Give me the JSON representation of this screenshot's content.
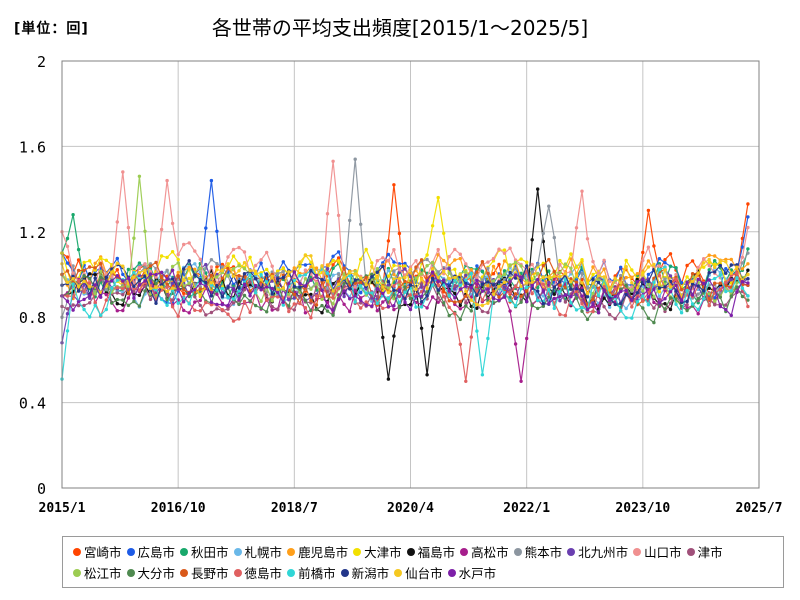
{
  "chart_data": {
    "type": "line",
    "title": "各世帯の平均支出頻度[2015/1～2025/5]",
    "unit_label": "[単位：回]",
    "ylim": [
      0,
      2
    ],
    "y_ticks": [
      "0",
      "0.4",
      "0.8",
      "1.2",
      "1.6",
      "2"
    ],
    "x_start_index": 0,
    "x_end_index": 126,
    "x_ticks": [
      {
        "label": "2015/1",
        "index": 0
      },
      {
        "label": "2016/10",
        "index": 21
      },
      {
        "label": "2018/7",
        "index": 42
      },
      {
        "label": "2020/4",
        "index": 63
      },
      {
        "label": "2022/1",
        "index": 84
      },
      {
        "label": "2023/10",
        "index": 105
      },
      {
        "label": "2025/7",
        "index": 126
      }
    ],
    "n_points": 125,
    "series": [
      {
        "name": "宮崎市",
        "color": "#ff4500",
        "base": 0.98,
        "amp": 0.12,
        "anchors": [
          [
            0,
            1.1
          ],
          [
            41,
            1.0
          ],
          [
            60,
            1.42
          ],
          [
            106,
            1.3
          ],
          [
            124,
            1.33
          ]
        ]
      },
      {
        "name": "広島市",
        "color": "#1e5be6",
        "base": 1.0,
        "amp": 0.12,
        "anchors": [
          [
            0,
            1.1
          ],
          [
            27,
            1.44
          ],
          [
            124,
            1.27
          ]
        ]
      },
      {
        "name": "秋田市",
        "color": "#18a86b",
        "base": 0.97,
        "amp": 0.12,
        "anchors": [
          [
            0,
            1.1
          ],
          [
            2,
            1.28
          ],
          [
            124,
            1.12
          ]
        ]
      },
      {
        "name": "札幌市",
        "color": "#6ab8e8",
        "base": 0.94,
        "amp": 0.12,
        "anchors": [
          [
            0,
            1.0
          ],
          [
            124,
            0.95
          ]
        ]
      },
      {
        "name": "鹿児島市",
        "color": "#ff9f1a",
        "base": 1.0,
        "amp": 0.12,
        "anchors": [
          [
            0,
            1.0
          ],
          [
            124,
            1.05
          ]
        ]
      },
      {
        "name": "大津市",
        "color": "#f2e000",
        "base": 1.0,
        "amp": 0.13,
        "anchors": [
          [
            0,
            1.1
          ],
          [
            68,
            1.36
          ],
          [
            124,
            1.0
          ]
        ]
      },
      {
        "name": "福島市",
        "color": "#111111",
        "base": 0.92,
        "amp": 0.12,
        "anchors": [
          [
            0,
            0.9
          ],
          [
            59,
            0.51
          ],
          [
            66,
            0.53
          ],
          [
            86,
            1.4
          ],
          [
            124,
            1.02
          ]
        ]
      },
      {
        "name": "高松市",
        "color": "#a61e8c",
        "base": 0.88,
        "amp": 0.12,
        "anchors": [
          [
            0,
            0.9
          ],
          [
            83,
            0.5
          ],
          [
            124,
            0.95
          ]
        ]
      },
      {
        "name": "熊本市",
        "color": "#8c96a0",
        "base": 0.98,
        "amp": 0.12,
        "anchors": [
          [
            0,
            0.8
          ],
          [
            53,
            1.54
          ],
          [
            88,
            1.32
          ],
          [
            124,
            1.1
          ]
        ]
      },
      {
        "name": "北九州市",
        "color": "#6a3fb0",
        "base": 0.94,
        "amp": 0.12,
        "anchors": [
          [
            0,
            0.68
          ],
          [
            124,
            0.98
          ]
        ]
      },
      {
        "name": "山口市",
        "color": "#f09090",
        "base": 1.02,
        "amp": 0.14,
        "anchors": [
          [
            0,
            1.2
          ],
          [
            11,
            1.48
          ],
          [
            19,
            1.44
          ],
          [
            49,
            1.53
          ],
          [
            94,
            1.39
          ],
          [
            124,
            1.22
          ]
        ]
      },
      {
        "name": "津市",
        "color": "#a0507a",
        "base": 0.9,
        "amp": 0.12,
        "anchors": [
          [
            0,
            0.85
          ],
          [
            124,
            0.9
          ]
        ]
      },
      {
        "name": "松江市",
        "color": "#9ccc52",
        "base": 0.96,
        "amp": 0.12,
        "anchors": [
          [
            0,
            1.0
          ],
          [
            14,
            1.46
          ],
          [
            124,
            1.0
          ]
        ]
      },
      {
        "name": "大分市",
        "color": "#4f8a50",
        "base": 0.9,
        "amp": 0.12,
        "anchors": [
          [
            0,
            0.9
          ],
          [
            124,
            0.88
          ]
        ]
      },
      {
        "name": "長野市",
        "color": "#d9591a",
        "base": 0.96,
        "amp": 0.12,
        "anchors": [
          [
            0,
            1.0
          ],
          [
            124,
            0.95
          ]
        ]
      },
      {
        "name": "徳島市",
        "color": "#e06060",
        "base": 0.9,
        "amp": 0.12,
        "anchors": [
          [
            0,
            0.9
          ],
          [
            73,
            0.5
          ],
          [
            124,
            0.85
          ]
        ]
      },
      {
        "name": "前橋市",
        "color": "#30d6d6",
        "base": 0.92,
        "amp": 0.13,
        "anchors": [
          [
            0,
            0.51
          ],
          [
            76,
            0.53
          ],
          [
            124,
            0.9
          ]
        ]
      },
      {
        "name": "新潟市",
        "color": "#22368a",
        "base": 0.96,
        "amp": 0.12,
        "anchors": [
          [
            0,
            0.95
          ],
          [
            124,
            0.98
          ]
        ]
      },
      {
        "name": "仙台市",
        "color": "#f5c820",
        "base": 0.98,
        "amp": 0.12,
        "anchors": [
          [
            0,
            1.05
          ],
          [
            124,
            1.0
          ]
        ]
      },
      {
        "name": "水戸市",
        "color": "#7d20a8",
        "base": 0.92,
        "amp": 0.12,
        "anchors": [
          [
            0,
            0.9
          ],
          [
            124,
            0.96
          ]
        ]
      }
    ]
  }
}
